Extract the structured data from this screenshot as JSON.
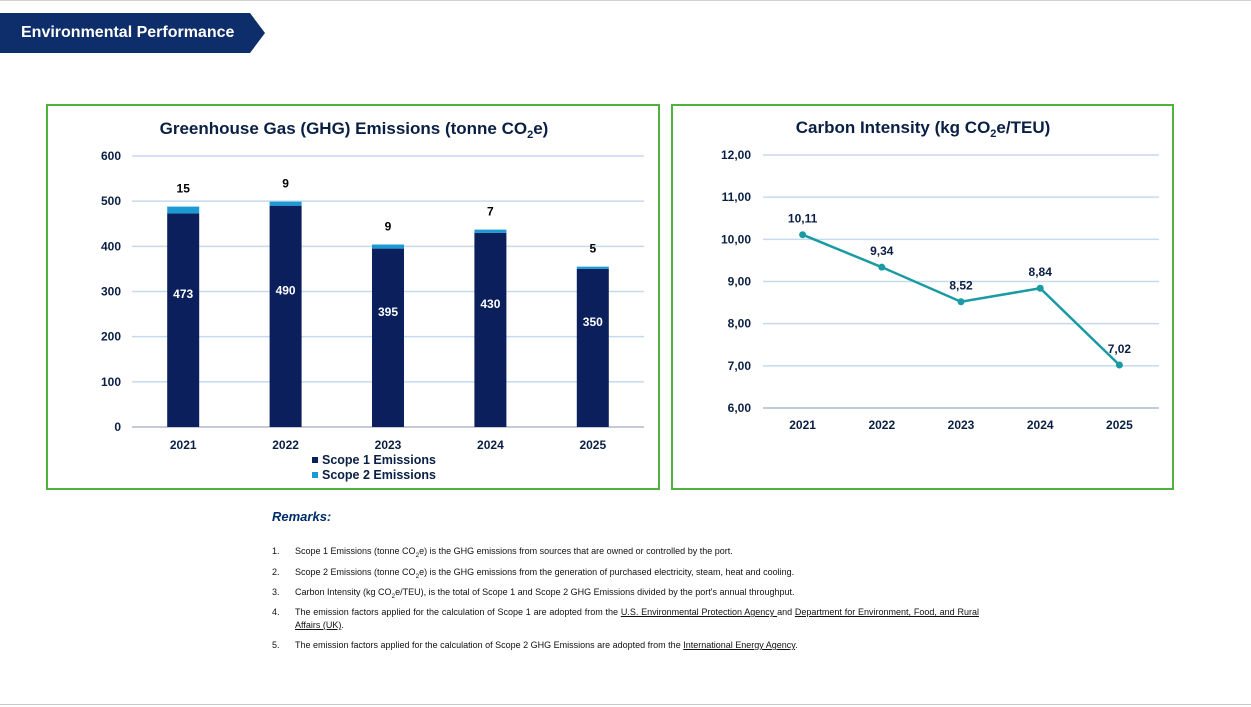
{
  "header": {
    "title": "Environmental Performance",
    "banner_color": "#0e2d6b"
  },
  "colors": {
    "scope1": "#0a1f5c",
    "scope2": "#1b9ad6",
    "line": "#1a9aa3",
    "panel_border": "#4fb23f",
    "gridline": "#c5d9ef"
  },
  "chart_data": [
    {
      "type": "bar",
      "stacked": true,
      "title_main": "Greenhouse Gas (GHG) Emissions (tonne CO",
      "title_sub": "2",
      "title_tail": "e)",
      "categories": [
        "2021",
        "2022",
        "2023",
        "2024",
        "2025"
      ],
      "series": [
        {
          "name": "Scope 1 Emissions",
          "values": [
            473,
            490,
            395,
            430,
            350
          ]
        },
        {
          "name": "Scope 2 Emissions",
          "values": [
            15,
            9,
            9,
            7,
            5
          ]
        }
      ],
      "ylim": [
        0,
        600
      ],
      "yticks": [
        "0",
        "100",
        "200",
        "300",
        "400",
        "500",
        "600"
      ],
      "grid": true,
      "legend_position": "bottom"
    },
    {
      "type": "line",
      "title_main": "Carbon Intensity (kg CO",
      "title_sub": "2",
      "title_tail": "e/TEU)",
      "categories": [
        "2021",
        "2022",
        "2023",
        "2024",
        "2025"
      ],
      "values": [
        10.11,
        9.34,
        8.52,
        8.84,
        7.02
      ],
      "value_labels": [
        "10,11",
        "9,34",
        "8,52",
        "8,84",
        "7,02"
      ],
      "ylim": [
        6,
        12
      ],
      "yticks": [
        "6,00",
        "7,00",
        "8,00",
        "9,00",
        "10,00",
        "11,00",
        "12,00"
      ],
      "grid": true
    }
  ],
  "remarks": {
    "title": "Remarks:",
    "items": [
      {
        "num": "1.",
        "pre": "Scope 1 Emissions (tonne CO",
        "sub": "2",
        "post": "e) is the GHG emissions from sources that are owned or controlled by the port."
      },
      {
        "num": "2.",
        "pre": "Scope 2 Emissions (tonne CO",
        "sub": "2",
        "post": "e) is the GHG emissions from the generation of purchased electricity, steam, heat and cooling."
      },
      {
        "num": "3.",
        "pre": "Carbon Intensity (kg CO",
        "sub": "2",
        "post": "e/TEU), is the total of Scope 1 and Scope 2 GHG Emissions divided by the port's annual throughput."
      },
      {
        "num": "4.",
        "pre": "The emission factors applied for the calculation of Scope 1 are adopted from the ",
        "link1": "U.S. Environmental Protection Agency ",
        "mid": "and ",
        "link2": "Department for Environment, Food, and Rural Affairs (UK)",
        "post": "."
      },
      {
        "num": "5.",
        "pre": "The emission factors applied for the calculation of Scope 2 GHG Emissions are adopted from the ",
        "link1": "International Energy Agency",
        "post": "."
      }
    ]
  }
}
